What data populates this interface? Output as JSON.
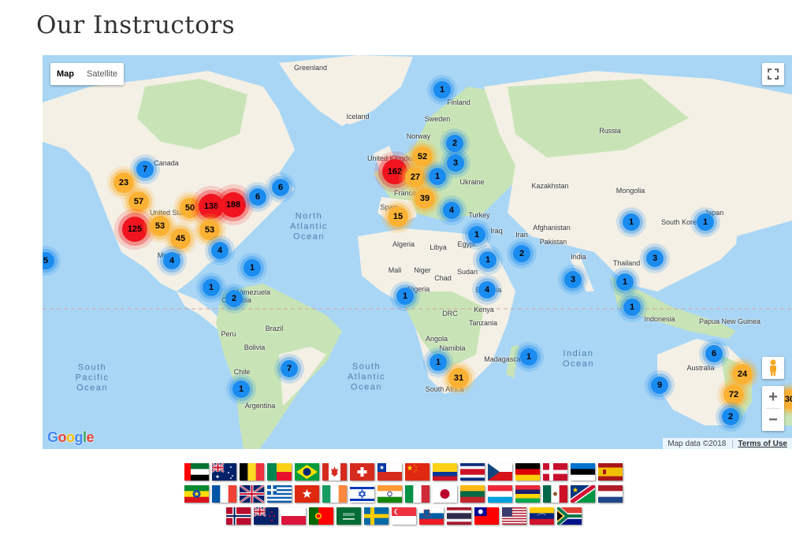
{
  "page_title": "Our Instructors",
  "map_type": {
    "map": "Map",
    "satellite": "Satellite",
    "active": "Map"
  },
  "controls": {
    "zoom_in": "+",
    "zoom_out": "−",
    "icons": [
      "fullscreen-icon",
      "pegman-icon",
      "zoom-in-icon",
      "zoom-out-icon"
    ]
  },
  "footer": {
    "logo": "Google",
    "map_data": "Map data ©2018",
    "terms": "Terms of Use"
  },
  "colors": {
    "water": "#a9d6f5",
    "land": "#f4f0e6",
    "green": "#c8e4b6",
    "cluster_small": "#1a8cf0",
    "cluster_medium": "#fbb234",
    "cluster_large": "#f0141e"
  },
  "place_labels": [
    {
      "text": "Greenland"
    },
    {
      "text": "Iceland"
    },
    {
      "text": "Finland"
    },
    {
      "text": "Sweden"
    },
    {
      "text": "Norway"
    },
    {
      "text": "Russia"
    },
    {
      "text": "United Kingdom"
    },
    {
      "text": "Ukraine"
    },
    {
      "text": "Kazakhstan"
    },
    {
      "text": "Mongolia"
    },
    {
      "text": "France"
    },
    {
      "text": "Spain"
    },
    {
      "text": "Turkey"
    },
    {
      "text": "Iraq"
    },
    {
      "text": "Iran"
    },
    {
      "text": "Afghanistan"
    },
    {
      "text": "Pakistan"
    },
    {
      "text": "India"
    },
    {
      "text": "Thailand"
    },
    {
      "text": "South Korea"
    },
    {
      "text": "Japan"
    },
    {
      "text": "Algeria"
    },
    {
      "text": "Libya"
    },
    {
      "text": "Egypt"
    },
    {
      "text": "Mali"
    },
    {
      "text": "Niger"
    },
    {
      "text": "Chad"
    },
    {
      "text": "Sudan"
    },
    {
      "text": "Nigeria"
    },
    {
      "text": "Ethiopia"
    },
    {
      "text": "Kenya"
    },
    {
      "text": "DRC"
    },
    {
      "text": "Tanzania"
    },
    {
      "text": "Angola"
    },
    {
      "text": "Namibia"
    },
    {
      "text": "Madagascar"
    },
    {
      "text": "South Africa"
    },
    {
      "text": "Canada"
    },
    {
      "text": "United States"
    },
    {
      "text": "Mexico"
    },
    {
      "text": "Venezuela"
    },
    {
      "text": "Colombia"
    },
    {
      "text": "Peru"
    },
    {
      "text": "Brazil"
    },
    {
      "text": "Bolivia"
    },
    {
      "text": "Chile"
    },
    {
      "text": "Argentina"
    },
    {
      "text": "Indonesia"
    },
    {
      "text": "Papua New Guinea"
    },
    {
      "text": "Australia"
    }
  ],
  "oceans": [
    {
      "lines": [
        "North",
        "Atlantic",
        "Ocean"
      ]
    },
    {
      "lines": [
        "South",
        "Atlantic",
        "Ocean"
      ]
    },
    {
      "lines": [
        "South",
        "Pacific",
        "Ocean"
      ]
    },
    {
      "lines": [
        "Indian",
        "Ocean"
      ]
    }
  ],
  "clusters": [
    {
      "count": "1",
      "size": "blue"
    },
    {
      "count": "2",
      "size": "blue"
    },
    {
      "count": "3",
      "size": "blue"
    },
    {
      "count": "52",
      "size": "yellow"
    },
    {
      "count": "162",
      "size": "red"
    },
    {
      "count": "27",
      "size": "yellow"
    },
    {
      "count": "1",
      "size": "blue"
    },
    {
      "count": "39",
      "size": "yellow"
    },
    {
      "count": "15",
      "size": "yellow"
    },
    {
      "count": "4",
      "size": "blue"
    },
    {
      "count": "1",
      "size": "blue"
    },
    {
      "count": "1",
      "size": "blue"
    },
    {
      "count": "2",
      "size": "blue"
    },
    {
      "count": "4",
      "size": "blue"
    },
    {
      "count": "1",
      "size": "blue"
    },
    {
      "count": "3",
      "size": "blue"
    },
    {
      "count": "1",
      "size": "blue"
    },
    {
      "count": "3",
      "size": "blue"
    },
    {
      "count": "1",
      "size": "blue"
    },
    {
      "count": "1",
      "size": "blue"
    },
    {
      "count": "1",
      "size": "blue"
    },
    {
      "count": "1",
      "size": "blue"
    },
    {
      "count": "31",
      "size": "yellow"
    },
    {
      "count": "1",
      "size": "blue"
    },
    {
      "count": "6",
      "size": "blue"
    },
    {
      "count": "24",
      "size": "yellow"
    },
    {
      "count": "9",
      "size": "blue"
    },
    {
      "count": "72",
      "size": "yellow"
    },
    {
      "count": "2",
      "size": "blue"
    },
    {
      "count": "30",
      "size": "yellow"
    },
    {
      "count": "7",
      "size": "blue"
    },
    {
      "count": "23",
      "size": "yellow"
    },
    {
      "count": "57",
      "size": "yellow"
    },
    {
      "count": "50",
      "size": "yellow"
    },
    {
      "count": "138",
      "size": "red"
    },
    {
      "count": "188",
      "size": "red"
    },
    {
      "count": "6",
      "size": "blue"
    },
    {
      "count": "6",
      "size": "blue"
    },
    {
      "count": "125",
      "size": "red"
    },
    {
      "count": "53",
      "size": "yellow"
    },
    {
      "count": "45",
      "size": "yellow"
    },
    {
      "count": "53",
      "size": "yellow"
    },
    {
      "count": "4",
      "size": "blue"
    },
    {
      "count": "4",
      "size": "blue"
    },
    {
      "count": "1",
      "size": "blue"
    },
    {
      "count": "5",
      "size": "blue"
    },
    {
      "count": "1",
      "size": "blue"
    },
    {
      "count": "2",
      "size": "blue"
    },
    {
      "count": "7",
      "size": "blue"
    },
    {
      "count": "1",
      "size": "blue"
    }
  ],
  "flags": [
    [
      "uae",
      "australia",
      "belgium",
      "benin",
      "brazil",
      "canada",
      "switzerland",
      "chile",
      "china",
      "colombia",
      "costa-rica",
      "czech-republic",
      "germany",
      "denmark",
      "estonia",
      "spain"
    ],
    [
      "ethiopia",
      "france",
      "united-kingdom",
      "greece",
      "hong-kong",
      "ireland",
      "israel",
      "india",
      "italy",
      "japan",
      "lithuania",
      "luxembourg",
      "mauritius",
      "mexico",
      "namibia",
      "netherlands"
    ],
    [
      "norway",
      "new-zealand",
      "poland",
      "portugal",
      "saudi-arabia",
      "sweden",
      "singapore",
      "slovenia",
      "thailand",
      "taiwan",
      "united-states",
      "venezuela",
      "south-africa"
    ]
  ]
}
